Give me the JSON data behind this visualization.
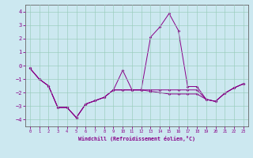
{
  "xlabel": "Windchill (Refroidissement éolien,°C)",
  "bg_color": "#cce8f0",
  "line_color": "#880088",
  "grid_color": "#99ccbb",
  "spine_color": "#666666",
  "xlim": [
    -0.5,
    23.5
  ],
  "ylim": [
    -4.5,
    4.5
  ],
  "yticks": [
    -4,
    -3,
    -2,
    -1,
    0,
    1,
    2,
    3,
    4
  ],
  "xticks": [
    0,
    1,
    2,
    3,
    4,
    5,
    6,
    7,
    8,
    9,
    10,
    11,
    12,
    13,
    14,
    15,
    16,
    17,
    18,
    19,
    20,
    21,
    22,
    23
  ],
  "series1": [
    [
      0,
      -0.2
    ],
    [
      1,
      -1.0
    ],
    [
      2,
      -1.5
    ],
    [
      3,
      -3.1
    ],
    [
      4,
      -3.1
    ],
    [
      5,
      -3.85
    ],
    [
      6,
      -2.85
    ],
    [
      7,
      -2.6
    ],
    [
      8,
      -2.35
    ],
    [
      9,
      -1.8
    ],
    [
      10,
      -0.35
    ],
    [
      11,
      -1.8
    ],
    [
      12,
      -1.8
    ],
    [
      13,
      2.1
    ],
    [
      14,
      2.85
    ],
    [
      15,
      3.85
    ],
    [
      16,
      2.6
    ],
    [
      17,
      -1.55
    ],
    [
      18,
      -1.55
    ],
    [
      19,
      -2.5
    ],
    [
      20,
      -2.65
    ],
    [
      21,
      -2.05
    ],
    [
      22,
      -1.65
    ],
    [
      23,
      -1.35
    ]
  ],
  "series2": [
    [
      0,
      -0.2
    ],
    [
      1,
      -1.0
    ],
    [
      2,
      -1.5
    ],
    [
      3,
      -3.1
    ],
    [
      4,
      -3.1
    ],
    [
      5,
      -3.85
    ],
    [
      6,
      -2.85
    ],
    [
      7,
      -2.6
    ],
    [
      8,
      -2.35
    ],
    [
      9,
      -1.8
    ],
    [
      10,
      -1.8
    ],
    [
      11,
      -1.8
    ],
    [
      12,
      -1.8
    ],
    [
      13,
      -1.8
    ],
    [
      14,
      -1.8
    ],
    [
      15,
      -1.8
    ],
    [
      16,
      -1.8
    ],
    [
      17,
      -1.8
    ],
    [
      18,
      -1.8
    ],
    [
      19,
      -2.5
    ],
    [
      20,
      -2.65
    ],
    [
      21,
      -2.05
    ],
    [
      22,
      -1.65
    ],
    [
      23,
      -1.35
    ]
  ],
  "series3": [
    [
      0,
      -0.2
    ],
    [
      1,
      -1.0
    ],
    [
      2,
      -1.5
    ],
    [
      3,
      -3.1
    ],
    [
      4,
      -3.1
    ],
    [
      5,
      -3.85
    ],
    [
      6,
      -2.85
    ],
    [
      7,
      -2.6
    ],
    [
      8,
      -2.35
    ],
    [
      9,
      -1.8
    ],
    [
      10,
      -1.8
    ],
    [
      11,
      -1.8
    ],
    [
      12,
      -1.8
    ],
    [
      13,
      -1.9
    ],
    [
      14,
      -2.0
    ],
    [
      15,
      -2.1
    ],
    [
      16,
      -2.1
    ],
    [
      17,
      -2.1
    ],
    [
      18,
      -2.1
    ],
    [
      19,
      -2.5
    ],
    [
      20,
      -2.65
    ],
    [
      21,
      -2.05
    ],
    [
      22,
      -1.65
    ],
    [
      23,
      -1.35
    ]
  ]
}
